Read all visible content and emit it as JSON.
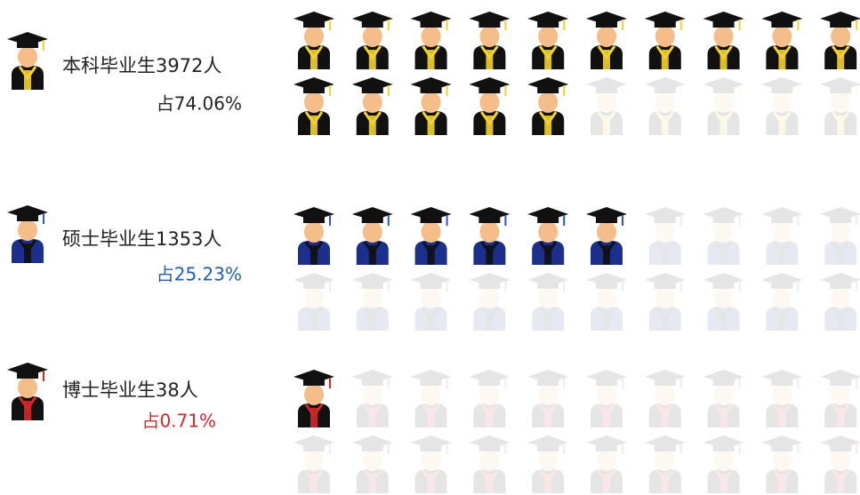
{
  "groups": [
    {
      "label": "本科毕业生3972人",
      "share": "占74.06%",
      "share_color": "#222222",
      "gown": "#111111",
      "trim": "#f2d22e",
      "filled": 15,
      "total": 20
    },
    {
      "label": "硕士毕业生1353人",
      "share": "占25.23%",
      "share_color": "#1f5fa8",
      "gown": "#1c2f8c",
      "trim": "#111111",
      "filled": 6,
      "total": 20
    },
    {
      "label": "博士毕业生38人",
      "share": "占0.71%",
      "share_color": "#d6262a",
      "gown": "#111111",
      "trim": "#d6262a",
      "filled": 1,
      "total": 20
    }
  ]
}
